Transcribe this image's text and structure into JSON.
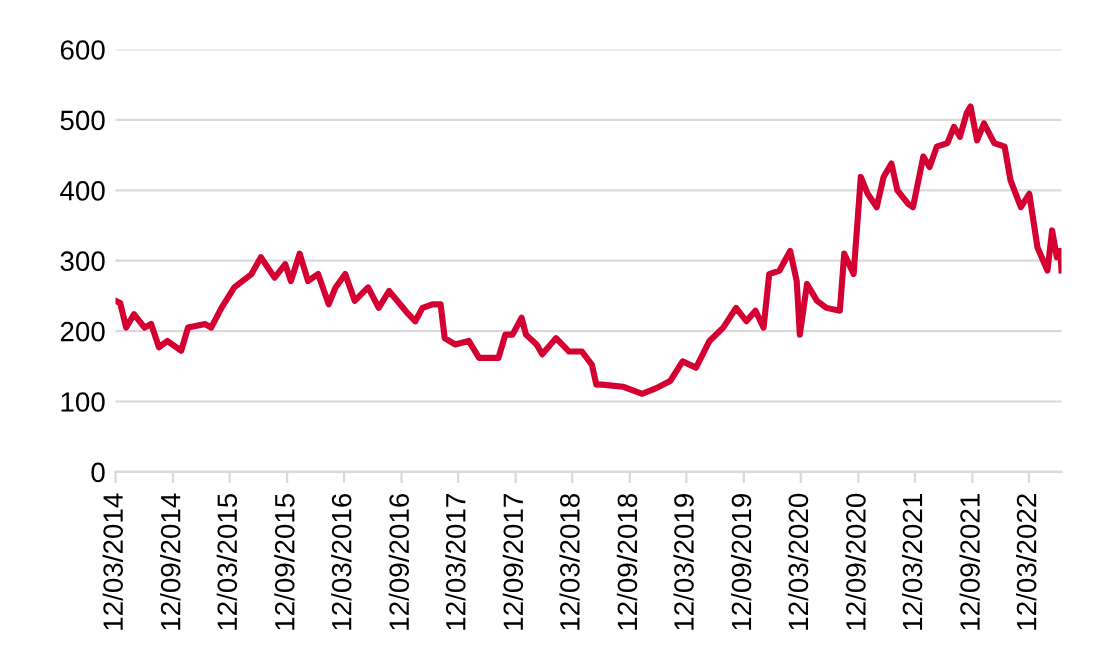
{
  "chart_data": {
    "type": "line",
    "x": [
      "2014-03-12",
      "2014-03-27",
      "2014-04-15",
      "2014-05-10",
      "2014-06-13",
      "2014-07-04",
      "2014-07-29",
      "2014-08-25",
      "2014-10-08",
      "2014-10-30",
      "2014-12-24",
      "2015-01-12",
      "2015-02-14",
      "2015-03-27",
      "2015-05-21",
      "2015-06-20",
      "2015-08-03",
      "2015-09-06",
      "2015-09-24",
      "2015-10-22",
      "2015-11-18",
      "2015-12-20",
      "2016-01-23",
      "2016-02-14",
      "2016-03-16",
      "2016-04-15",
      "2016-05-28",
      "2016-07-01",
      "2016-08-03",
      "2016-10-04",
      "2016-10-26",
      "2016-11-18",
      "2016-12-20",
      "2017-01-15",
      "2017-01-28",
      "2017-03-02",
      "2017-04-15",
      "2017-05-18",
      "2017-07-19",
      "2017-08-10",
      "2017-09-02",
      "2017-10-01",
      "2017-10-15",
      "2017-11-18",
      "2017-12-06",
      "2018-01-19",
      "2018-03-02",
      "2018-04-12",
      "2018-05-14",
      "2018-05-28",
      "2018-06-17",
      "2018-08-21",
      "2018-10-22",
      "2018-12-06",
      "2019-01-19",
      "2019-02-28",
      "2019-04-12",
      "2019-05-25",
      "2019-07-08",
      "2019-08-18",
      "2019-09-20",
      "2019-10-19",
      "2019-11-14",
      "2019-12-02",
      "2020-01-04",
      "2020-02-07",
      "2020-02-28",
      "2020-03-09",
      "2020-04-01",
      "2020-05-03",
      "2020-06-02",
      "2020-07-15",
      "2020-07-29",
      "2020-08-28",
      "2020-09-20",
      "2020-10-12",
      "2020-11-10",
      "2020-12-02",
      "2020-12-27",
      "2021-01-15",
      "2021-02-18",
      "2021-03-06",
      "2021-04-08",
      "2021-04-28",
      "2021-05-21",
      "2021-06-24",
      "2021-07-15",
      "2021-08-03",
      "2021-08-25",
      "2021-09-06",
      "2021-09-27",
      "2021-10-19",
      "2021-11-21",
      "2021-12-24",
      "2022-01-12",
      "2022-02-14",
      "2022-03-13",
      "2022-04-08",
      "2022-05-10",
      "2022-05-25",
      "2022-06-09",
      "2022-06-20",
      "2022-06-24"
    ],
    "series": [
      {
        "color": "#d50032",
        "values": [
          243,
          240,
          205,
          224,
          205,
          210,
          177,
          186,
          172,
          205,
          210,
          205,
          233,
          262,
          281,
          305,
          276,
          295,
          271,
          310,
          271,
          281,
          238,
          262,
          281,
          243,
          262,
          233,
          257,
          224,
          214,
          233,
          238,
          238,
          190,
          181,
          186,
          162,
          162,
          195,
          195,
          219,
          195,
          181,
          167,
          190,
          171,
          171,
          152,
          124,
          124,
          121,
          111,
          119,
          129,
          157,
          148,
          186,
          205,
          233,
          214,
          229,
          205,
          281,
          286,
          314,
          271,
          195,
          267,
          243,
          233,
          229,
          310,
          281,
          419,
          395,
          376,
          419,
          438,
          400,
          381,
          376,
          448,
          433,
          462,
          467,
          490,
          476,
          510,
          519,
          471,
          495,
          467,
          462,
          414,
          376,
          395,
          319,
          286,
          343,
          305,
          314,
          286
        ]
      }
    ],
    "xlim": [
      "2014-03-12",
      "2022-06-24"
    ],
    "xticks": [
      {
        "value": "2014-03-12",
        "label": "12/03/2014"
      },
      {
        "value": "2014-09-12",
        "label": "12/09/2014"
      },
      {
        "value": "2015-03-12",
        "label": "12/03/2015"
      },
      {
        "value": "2015-09-12",
        "label": "12/09/2015"
      },
      {
        "value": "2016-03-12",
        "label": "12/03/2016"
      },
      {
        "value": "2016-09-12",
        "label": "12/09/2016"
      },
      {
        "value": "2017-03-12",
        "label": "12/03/2017"
      },
      {
        "value": "2017-09-12",
        "label": "12/09/2017"
      },
      {
        "value": "2018-03-12",
        "label": "12/03/2018"
      },
      {
        "value": "2018-09-12",
        "label": "12/09/2018"
      },
      {
        "value": "2019-03-12",
        "label": "12/03/2019"
      },
      {
        "value": "2019-09-12",
        "label": "12/09/2019"
      },
      {
        "value": "2020-03-12",
        "label": "12/03/2020"
      },
      {
        "value": "2020-09-12",
        "label": "12/09/2020"
      },
      {
        "value": "2021-03-12",
        "label": "12/03/2021"
      },
      {
        "value": "2021-09-12",
        "label": "12/09/2021"
      },
      {
        "value": "2022-03-12",
        "label": "12/03/2022"
      }
    ],
    "ylim": [
      0,
      600
    ],
    "yticks": [
      0,
      100,
      200,
      300,
      400,
      500,
      600
    ],
    "grid": "y",
    "marker": "none",
    "line_style": "solid"
  }
}
